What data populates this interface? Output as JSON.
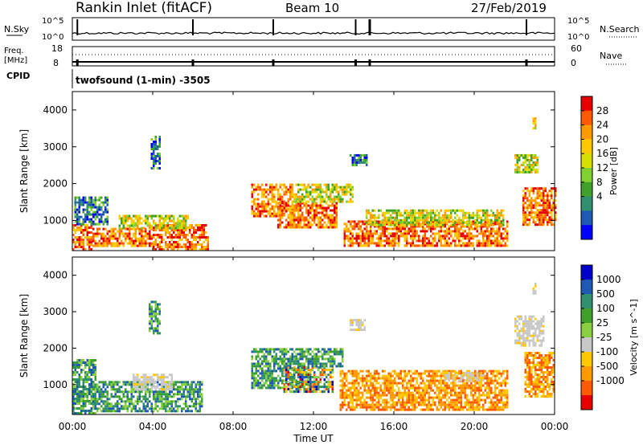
{
  "header": {
    "station": "Rankin Inlet (fitACF)",
    "beam": "Beam 10",
    "date": "27/Feb/2019"
  },
  "noise_panel": {
    "left_label": "N.Sky",
    "right_label": "N.Search",
    "left_top_tick": "10^5",
    "left_bottom_tick": "10^0",
    "right_top_tick": "10^5",
    "right_bottom_tick": "10^0"
  },
  "freq_panel": {
    "left_label_1": "Freq.",
    "left_label_2": "[MHz]",
    "left_top_tick": "18",
    "left_bottom_tick": "8",
    "right_label": "Nave",
    "right_top_tick": "60",
    "right_bottom_tick": "0"
  },
  "cpid": {
    "label": "CPID",
    "text": "twofsound (1-min) -3505"
  },
  "time_axis": {
    "xlabel": "Time UT",
    "ticks": [
      "00:00",
      "04:00",
      "08:00",
      "12:00",
      "16:00",
      "20:00",
      "00:00"
    ]
  },
  "chart_data": [
    {
      "type": "heatmap",
      "name": "power",
      "ylabel": "Slant Range [km]",
      "yticks": [
        "1000",
        "2000",
        "3000",
        "4000"
      ],
      "yticks_values": [
        1000,
        2000,
        3000,
        4000
      ],
      "ylim": [
        180,
        4500
      ],
      "xlim_hours": [
        0,
        24
      ],
      "colorbar_label": "Power [dB]",
      "colorbar_ticks": [
        "28",
        "24",
        "20",
        "16",
        "12",
        "8",
        "4"
      ],
      "colorbar_colors": [
        "#e60000",
        "#ff5a00",
        "#ff9a00",
        "#ffc800",
        "#d7e000",
        "#7fd030",
        "#3fa02a",
        "#2f8f6f",
        "#1e5ab4",
        "#0000ff"
      ],
      "regions": [
        {
          "t0": 0.0,
          "t1": 1.0,
          "r0": 220,
          "r1": 900,
          "level": "high"
        },
        {
          "t0": 1.0,
          "t1": 4.0,
          "r0": 300,
          "r1": 800,
          "level": "high"
        },
        {
          "t0": 4.0,
          "t1": 6.8,
          "r0": 200,
          "r1": 900,
          "level": "high"
        },
        {
          "t0": 0.1,
          "t1": 1.8,
          "r0": 900,
          "r1": 1650,
          "level": "low"
        },
        {
          "t0": 2.3,
          "t1": 5.8,
          "r0": 800,
          "r1": 1150,
          "level": "mid"
        },
        {
          "t0": 3.9,
          "t1": 4.4,
          "r0": 2400,
          "r1": 3300,
          "level": "low"
        },
        {
          "t0": 8.9,
          "t1": 11.0,
          "r0": 1100,
          "r1": 2000,
          "level": "high"
        },
        {
          "t0": 10.2,
          "t1": 13.2,
          "r0": 800,
          "r1": 1500,
          "level": "high"
        },
        {
          "t0": 11.0,
          "t1": 14.0,
          "r0": 1500,
          "r1": 2000,
          "level": "mid"
        },
        {
          "t0": 13.5,
          "t1": 21.7,
          "r0": 300,
          "r1": 1000,
          "level": "high"
        },
        {
          "t0": 14.6,
          "t1": 21.5,
          "r0": 900,
          "r1": 1300,
          "level": "mid"
        },
        {
          "t0": 13.8,
          "t1": 14.7,
          "r0": 2500,
          "r1": 2800,
          "level": "low"
        },
        {
          "t0": 22.0,
          "t1": 23.2,
          "r0": 2300,
          "r1": 2800,
          "level": "mid"
        },
        {
          "t0": 22.4,
          "t1": 24.0,
          "r0": 900,
          "r1": 1900,
          "level": "high"
        },
        {
          "t0": 22.9,
          "t1": 23.1,
          "r0": 3500,
          "r1": 3800,
          "level": "mid"
        }
      ]
    },
    {
      "type": "heatmap",
      "name": "velocity",
      "ylabel": "Slant Range [km]",
      "yticks": [
        "1000",
        "2000",
        "3000",
        "4000"
      ],
      "yticks_values": [
        1000,
        2000,
        3000,
        4000
      ],
      "ylim": [
        180,
        4500
      ],
      "xlim_hours": [
        0,
        24
      ],
      "colorbar_label": "Velocity [m s^-1]",
      "colorbar_ticks": [
        "1000",
        "500",
        "100",
        "25",
        "-25",
        "-100",
        "-500",
        "-1000"
      ],
      "colorbar_colors": [
        "#0000c8",
        "#1e5ab4",
        "#2f8f6f",
        "#3fa02a",
        "#88d040",
        "#c8c8c8",
        "#ffc800",
        "#ff9a00",
        "#ff5a00",
        "#e60000"
      ],
      "regions": [
        {
          "t0": 0.0,
          "t1": 1.2,
          "r0": 220,
          "r1": 1700,
          "level": "pos"
        },
        {
          "t0": 1.0,
          "t1": 6.5,
          "r0": 300,
          "r1": 1100,
          "level": "pos"
        },
        {
          "t0": 3.0,
          "t1": 5.0,
          "r0": 900,
          "r1": 1300,
          "level": "grey"
        },
        {
          "t0": 3.8,
          "t1": 4.4,
          "r0": 2400,
          "r1": 3300,
          "level": "pos"
        },
        {
          "t0": 8.9,
          "t1": 11.8,
          "r0": 900,
          "r1": 2000,
          "level": "pos"
        },
        {
          "t0": 10.5,
          "t1": 13.0,
          "r0": 800,
          "r1": 1500,
          "level": "mix"
        },
        {
          "t0": 11.8,
          "t1": 13.5,
          "r0": 1500,
          "r1": 2000,
          "level": "pos"
        },
        {
          "t0": 13.3,
          "t1": 21.7,
          "r0": 300,
          "r1": 1400,
          "level": "neg"
        },
        {
          "t0": 13.8,
          "t1": 14.6,
          "r0": 2500,
          "r1": 2800,
          "level": "grey"
        },
        {
          "t0": 18.5,
          "t1": 20.5,
          "r0": 1100,
          "r1": 1350,
          "level": "grey"
        },
        {
          "t0": 22.0,
          "t1": 23.5,
          "r0": 2100,
          "r1": 2900,
          "level": "grey"
        },
        {
          "t0": 22.5,
          "t1": 24.0,
          "r0": 700,
          "r1": 1900,
          "level": "neg"
        },
        {
          "t0": 22.9,
          "t1": 23.1,
          "r0": 3500,
          "r1": 3800,
          "level": "grey"
        }
      ]
    }
  ]
}
